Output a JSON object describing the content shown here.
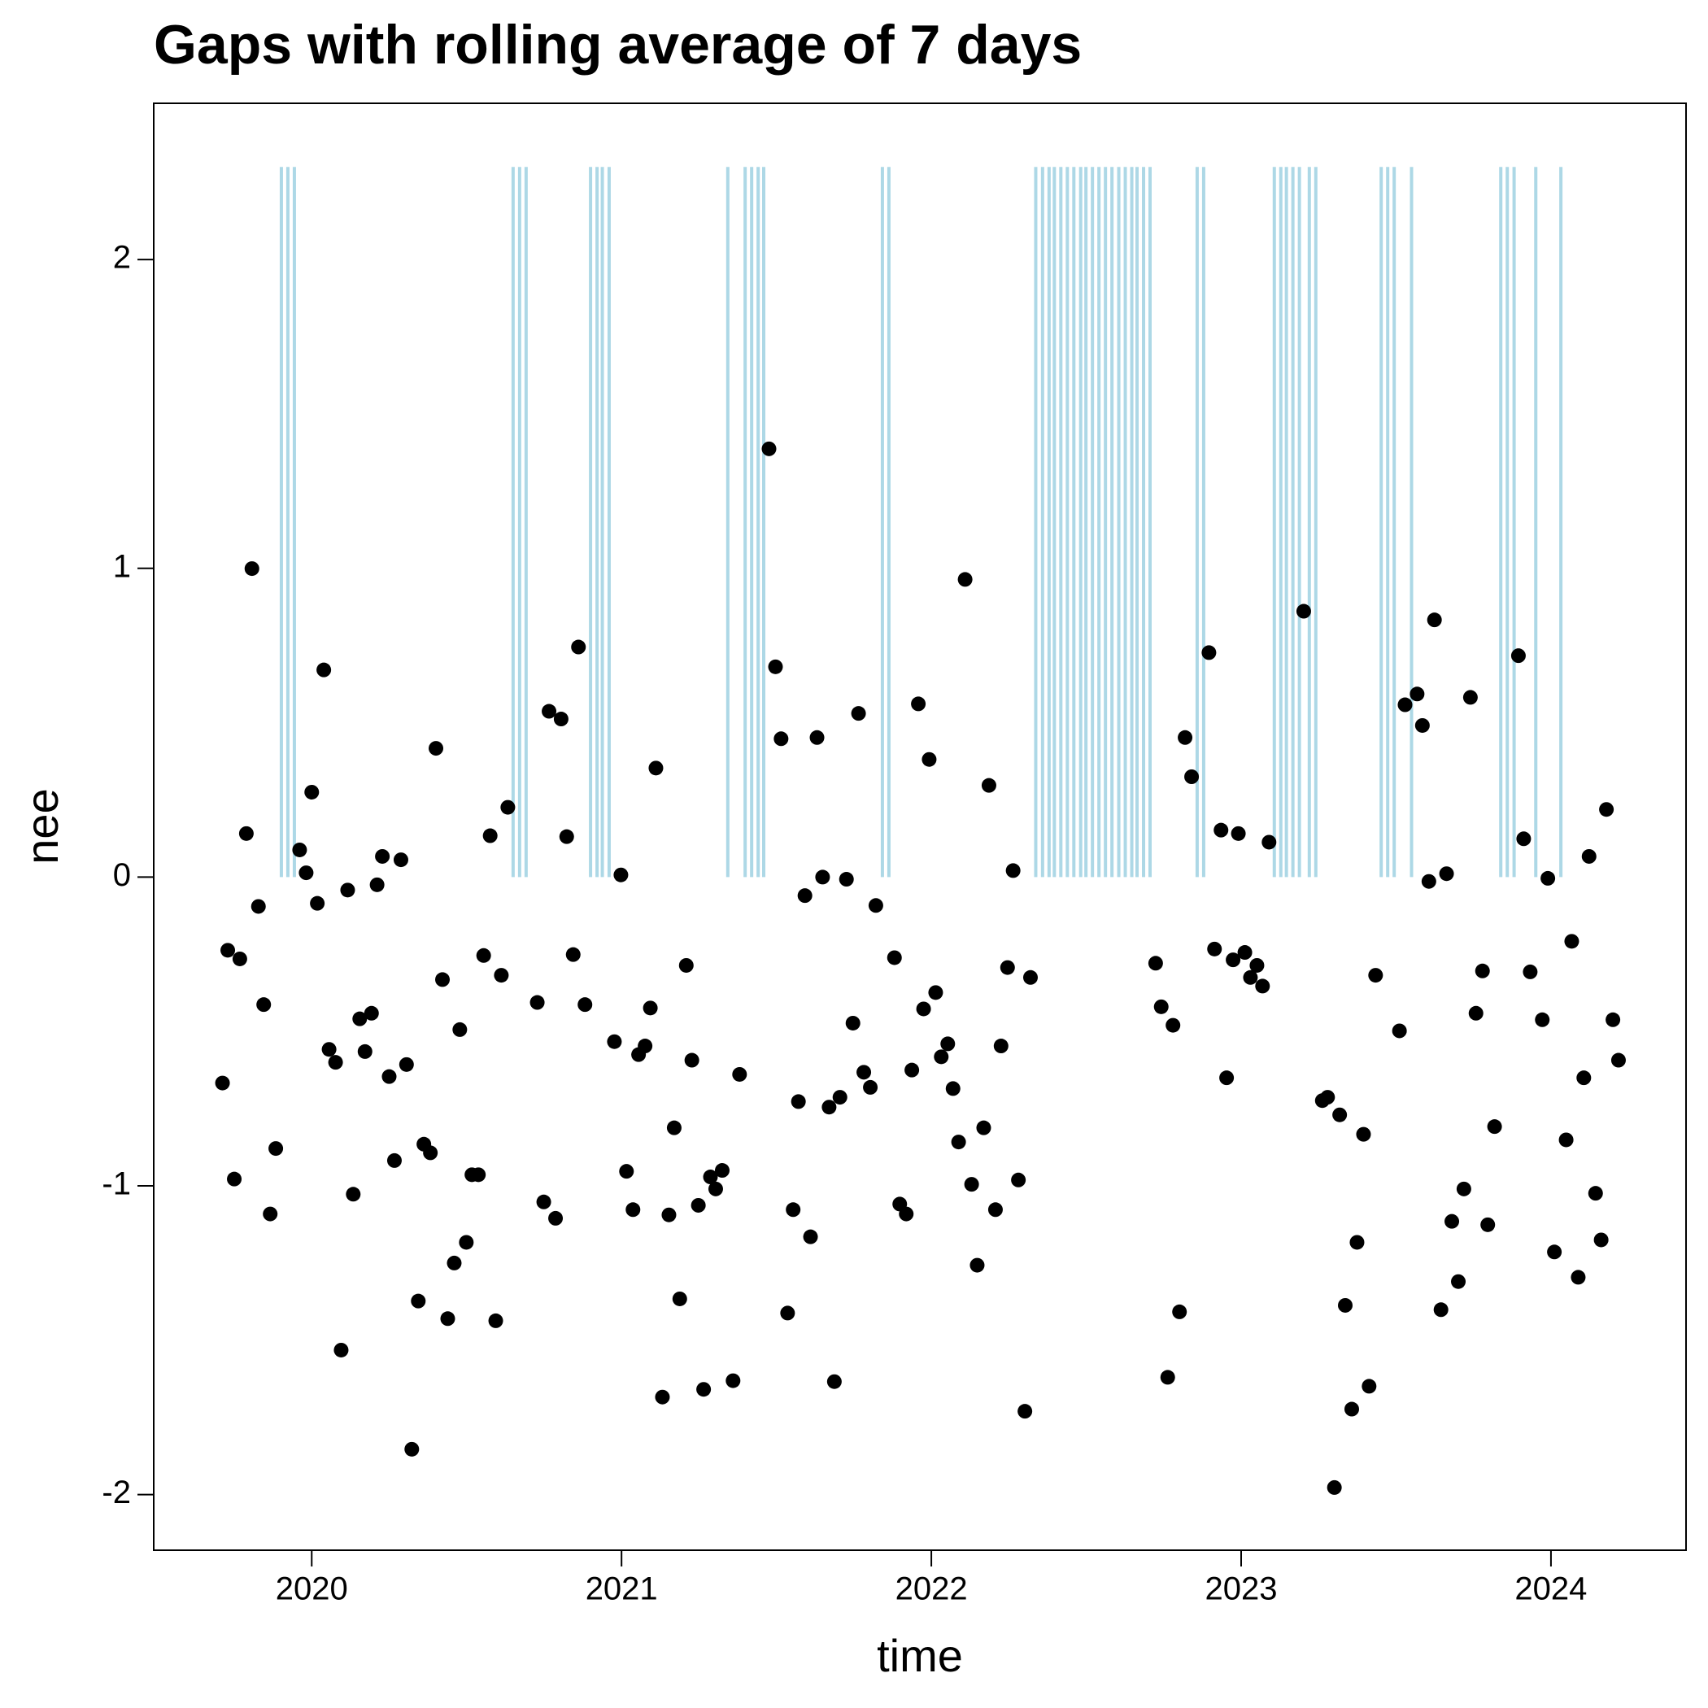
{
  "chart_data": {
    "type": "scatter",
    "title": "Gaps with rolling average of 7 days",
    "x_label": "time",
    "y_label": "nee",
    "color": "#000000",
    "x": [
      2019.712,
      2019.729,
      2019.75,
      2019.768,
      2019.789,
      2019.807,
      2019.828,
      2019.845,
      2019.866,
      2019.884,
      2019.961,
      2019.982,
      2020.0,
      2020.018,
      2020.039,
      2020.056,
      2020.077,
      2020.095,
      2020.116,
      2020.134,
      2020.155,
      2020.172,
      2020.193,
      2020.211,
      2020.228,
      2020.25,
      2020.267,
      2020.288,
      2020.306,
      2020.323,
      2020.344,
      2020.362,
      2020.383,
      2020.401,
      2020.422,
      2020.439,
      2020.46,
      2020.478,
      2020.499,
      2020.517,
      2020.538,
      2020.555,
      2020.576,
      2020.594,
      2020.612,
      2020.633,
      2020.728,
      2020.749,
      2020.766,
      2020.787,
      2020.805,
      2020.823,
      2020.844,
      2020.861,
      2020.882,
      2020.977,
      2020.998,
      2021.016,
      2021.037,
      2021.055,
      2021.076,
      2021.093,
      2021.111,
      2021.132,
      2021.153,
      2021.17,
      2021.188,
      2021.209,
      2021.227,
      2021.248,
      2021.265,
      2021.287,
      2021.304,
      2021.325,
      2021.36,
      2021.381,
      2021.476,
      2021.497,
      2021.515,
      2021.536,
      2021.554,
      2021.571,
      2021.592,
      2021.61,
      2021.631,
      2021.649,
      2021.67,
      2021.687,
      2021.705,
      2021.726,
      2021.747,
      2021.765,
      2021.782,
      2021.803,
      2021.821,
      2021.881,
      2021.898,
      2021.919,
      2021.937,
      2021.958,
      2021.975,
      2021.993,
      2022.014,
      2022.032,
      2022.053,
      2022.07,
      2022.088,
      2022.109,
      2022.13,
      2022.148,
      2022.169,
      2022.186,
      2022.207,
      2022.225,
      2022.246,
      2022.264,
      2022.281,
      2022.302,
      2022.32,
      2022.724,
      2022.742,
      2022.763,
      2022.78,
      2022.801,
      2022.819,
      2022.84,
      2022.896,
      2022.914,
      2022.935,
      2022.953,
      2022.974,
      2022.991,
      2023.012,
      2023.03,
      2023.051,
      2023.069,
      2023.09,
      2023.202,
      2023.262,
      2023.279,
      2023.301,
      2023.318,
      2023.336,
      2023.357,
      2023.374,
      2023.395,
      2023.413,
      2023.434,
      2023.511,
      2023.529,
      2023.568,
      2023.585,
      2023.606,
      2023.624,
      2023.645,
      2023.663,
      2023.68,
      2023.701,
      2023.719,
      2023.74,
      2023.758,
      2023.779,
      2023.796,
      2023.818,
      2023.895,
      2023.912,
      2023.933,
      2023.972,
      2023.99,
      2024.011,
      2024.049,
      2024.067,
      2024.088,
      2024.106,
      2024.123,
      2024.144,
      2024.162,
      2024.179,
      2024.2,
      2024.218
    ],
    "values": [
      -0.667,
      -0.237,
      -0.978,
      -0.265,
      0.141,
      0.999,
      -0.095,
      -0.413,
      -1.091,
      -0.879,
      0.088,
      0.014,
      0.275,
      -0.085,
      0.671,
      -0.558,
      -0.6,
      -1.532,
      -0.042,
      -1.027,
      -0.459,
      -0.565,
      -0.441,
      -0.025,
      0.067,
      -0.646,
      -0.918,
      0.056,
      -0.607,
      -1.853,
      -1.373,
      -0.865,
      -0.893,
      0.417,
      -0.332,
      -1.43,
      -1.25,
      -0.494,
      -1.183,
      -0.964,
      -0.964,
      -0.254,
      0.134,
      -1.437,
      -0.318,
      0.226,
      -0.406,
      -1.052,
      0.537,
      -1.105,
      0.512,
      0.131,
      -0.251,
      0.745,
      -0.413,
      -0.533,
      0.007,
      -0.953,
      -1.077,
      -0.575,
      -0.547,
      -0.424,
      0.353,
      -1.684,
      -1.094,
      -0.812,
      -1.366,
      -0.286,
      -0.593,
      -1.063,
      -1.659,
      -0.971,
      -1.01,
      -0.95,
      -1.631,
      -0.639,
      1.387,
      0.681,
      0.448,
      -1.412,
      -1.077,
      -0.727,
      -0.06,
      -1.165,
      0.452,
      0,
      -0.745,
      -1.634,
      -0.713,
      -0.007,
      -0.473,
      0.53,
      -0.632,
      -0.681,
      -0.092,
      -0.261,
      -1.059,
      -1.091,
      -0.625,
      0.561,
      -0.427,
      0.381,
      -0.374,
      -0.582,
      -0.54,
      -0.685,
      -0.858,
      0.964,
      -0.995,
      -1.257,
      -0.812,
      0.297,
      -1.077,
      -0.547,
      -0.293,
      0.021,
      -0.981,
      -1.73,
      -0.325,
      -0.279,
      -0.42,
      -1.62,
      -0.48,
      -1.408,
      0.452,
      0.325,
      0.727,
      -0.233,
      0.152,
      -0.65,
      -0.268,
      0.141,
      -0.244,
      -0.325,
      -0.286,
      -0.353,
      0.113,
      0.861,
      -0.724,
      -0.713,
      -1.977,
      -0.77,
      -1.387,
      -1.723,
      -1.183,
      -0.833,
      -1.649,
      -0.318,
      -0.498,
      0.558,
      0.593,
      0.491,
      -0.014,
      0.833,
      -1.401,
      0.011,
      -1.115,
      -1.31,
      -1.01,
      0.582,
      -0.441,
      -0.304,
      -1.126,
      -0.808,
      0.717,
      0.124,
      -0.307,
      -0.462,
      -0.004,
      -1.214,
      -0.851,
      -0.208,
      -1.296,
      -0.65,
      0.067,
      -1.024,
      -1.175,
      0.219,
      -0.462,
      -0.593
    ],
    "gaps": {
      "color": "#add8e6",
      "ymin": 0,
      "ymax": 2.3,
      "x": [
        2019.902,
        2019.923,
        2019.944,
        2020.65,
        2020.671,
        2020.692,
        2020.9,
        2020.921,
        2020.938,
        2020.96,
        2021.343,
        2021.399,
        2021.42,
        2021.441,
        2021.459,
        2021.842,
        2021.863,
        2022.337,
        2022.359,
        2022.38,
        2022.397,
        2022.418,
        2022.439,
        2022.46,
        2022.482,
        2022.499,
        2022.52,
        2022.541,
        2022.562,
        2022.583,
        2022.605,
        2022.626,
        2022.647,
        2022.664,
        2022.685,
        2022.706,
        2022.858,
        2022.879,
        2023.107,
        2023.128,
        2023.146,
        2023.167,
        2023.188,
        2023.22,
        2023.241,
        2023.452,
        2023.473,
        2023.494,
        2023.55,
        2023.838,
        2023.859,
        2023.881,
        2023.951,
        2024.032
      ]
    },
    "xlim": [
      2019.49,
      2024.436
    ],
    "ylim": [
      -2.18,
      2.506
    ],
    "xticks": [
      2020,
      2021,
      2022,
      2023,
      2024
    ],
    "yticks": [
      -2,
      -1,
      0,
      1,
      2
    ]
  }
}
